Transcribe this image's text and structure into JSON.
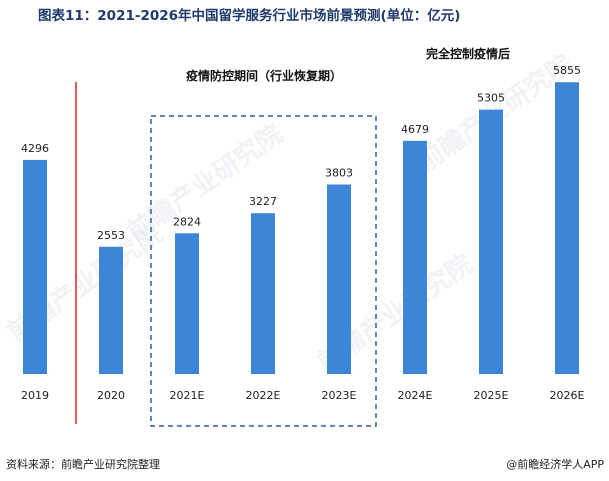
{
  "title": "图表11：2021-2026年中国留学服务行业市场前景预测(单位：亿元)",
  "annotations": {
    "pandemic_period": "疫情防控期间（行业恢复期）",
    "post_pandemic": "完全控制疫情后"
  },
  "footer": {
    "source": "资料来源：前瞻产业研究院整理",
    "credit": "@前瞻经济学人APP"
  },
  "watermark": "前瞻产业研究院",
  "colors": {
    "bar": "#3d85d6",
    "divider": "#e02020",
    "dashed_box": "#2b5fa8",
    "title": "#1f3a6b"
  },
  "chart_data": {
    "type": "bar",
    "categories": [
      "2019",
      "2020",
      "2021E",
      "2022E",
      "2023E",
      "2024E",
      "2025E",
      "2026E"
    ],
    "values": [
      4296,
      2553,
      2824,
      3227,
      3803,
      4679,
      5305,
      5855
    ],
    "ylim": [
      0,
      6000
    ],
    "grid": false,
    "legend": "none"
  }
}
